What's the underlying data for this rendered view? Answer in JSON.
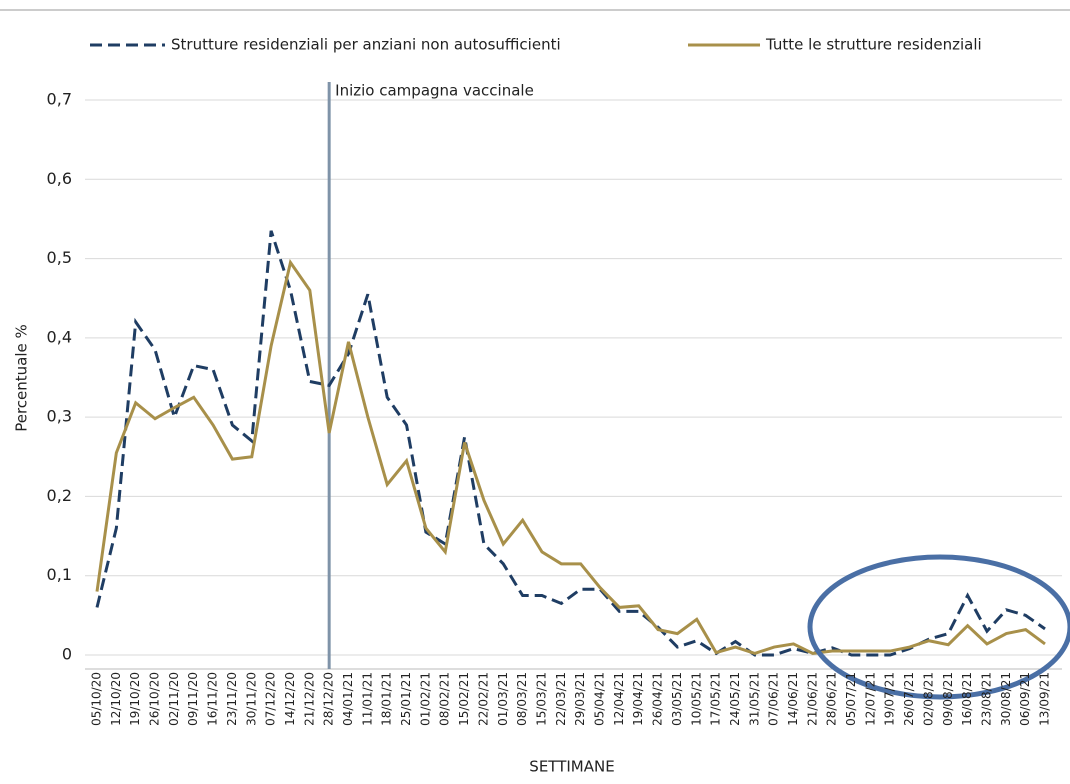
{
  "chart_data": {
    "type": "line",
    "x_label": "SETTIMANE",
    "y_label": "Percentuale %",
    "annotation": {
      "text": "Inizio campagna vaccinale",
      "x": "28/12/20"
    },
    "categories": [
      "05/10/20",
      "12/10/20",
      "19/10/20",
      "26/10/20",
      "02/11/20",
      "09/11/20",
      "16/11/20",
      "23/11/20",
      "30/11/20",
      "07/12/20",
      "14/12/20",
      "21/12/20",
      "28/12/20",
      "04/01/21",
      "11/01/21",
      "18/01/21",
      "25/01/21",
      "01/02/21",
      "08/02/21",
      "15/02/21",
      "22/02/21",
      "01/03/21",
      "08/03/21",
      "15/03/21",
      "22/03/21",
      "29/03/21",
      "05/04/21",
      "12/04/21",
      "19/04/21",
      "26/04/21",
      "03/05/21",
      "10/05/21",
      "17/05/21",
      "24/05/21",
      "31/05/21",
      "07/06/21",
      "14/06/21",
      "21/06/21",
      "28/06/21",
      "05/07/21",
      "12/07/21",
      "19/07/21",
      "26/07/21",
      "02/08/21",
      "09/08/21",
      "16/08/21",
      "23/08/21",
      "30/08/21",
      "06/09/21",
      "13/09/21"
    ],
    "series": [
      {
        "name": "Strutture residenziali per anziani non autosufficienti",
        "color": "#1f3d63",
        "dashed": true,
        "values": [
          0.06,
          0.16,
          0.42,
          0.385,
          0.3,
          0.365,
          0.36,
          0.29,
          0.27,
          0.535,
          0.46,
          0.345,
          0.34,
          0.38,
          0.455,
          0.325,
          0.29,
          0.155,
          0.14,
          0.275,
          0.14,
          0.115,
          0.075,
          0.075,
          0.065,
          0.083,
          0.083,
          0.055,
          0.055,
          0.035,
          0.01,
          0.018,
          0.002,
          0.017,
          0,
          0,
          0.008,
          0.002,
          0.009,
          0,
          0,
          0,
          0.008,
          0.02,
          0.027,
          0.075,
          0.03,
          0.057,
          0.05,
          0.033
        ]
      },
      {
        "name": "Tutte le strutture residenziali",
        "color": "#a8904a",
        "dashed": false,
        "values": [
          0.08,
          0.255,
          0.318,
          0.298,
          0.312,
          0.325,
          0.29,
          0.247,
          0.25,
          0.39,
          0.495,
          0.46,
          0.28,
          0.395,
          0.3,
          0.215,
          0.245,
          0.16,
          0.13,
          0.268,
          0.195,
          0.14,
          0.17,
          0.13,
          0.115,
          0.115,
          0.085,
          0.06,
          0.062,
          0.032,
          0.027,
          0.045,
          0.003,
          0.01,
          0.002,
          0.01,
          0.014,
          0.002,
          0.005,
          0.005,
          0.005,
          0.005,
          0.01,
          0.018,
          0.013,
          0.037,
          0.014,
          0.027,
          0.032,
          0.014
        ]
      }
    ],
    "ylim": [
      0,
      0.7
    ],
    "yticks": [
      0,
      {
        "value": 0.1,
        "label": "0,1"
      },
      {
        "value": 0.2,
        "label": "0,2"
      },
      {
        "value": 0.3,
        "label": "0,3"
      },
      {
        "value": 0.4,
        "label": "0,4"
      },
      {
        "value": 0.5,
        "label": "0,5"
      },
      {
        "value": 0.6,
        "label": "0,6"
      },
      {
        "value": 0.7,
        "label": "0,7"
      }
    ],
    "grid": true
  }
}
